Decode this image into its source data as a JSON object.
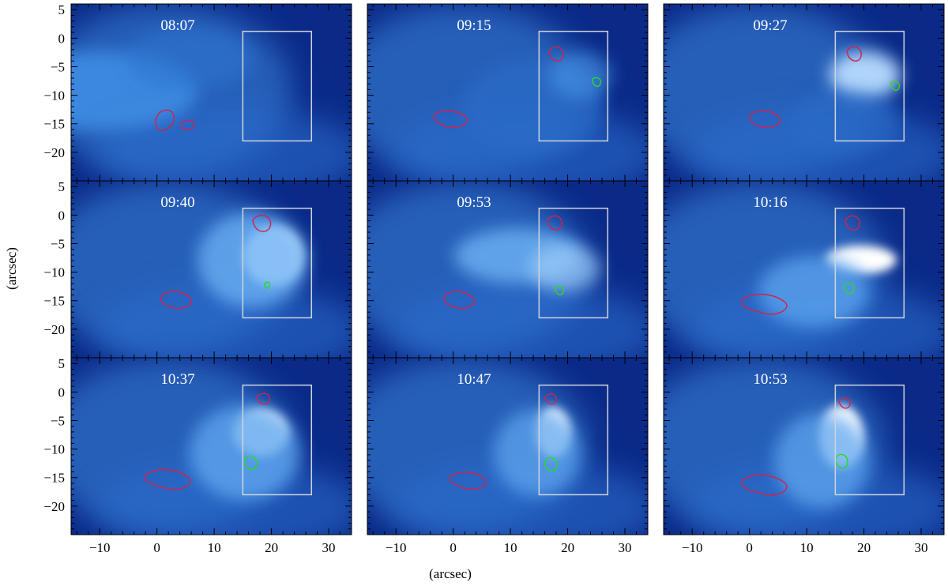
{
  "figure": {
    "xlabel": "(arcsec)",
    "ylabel": "(arcsec)",
    "xlim": [
      -15,
      34
    ],
    "ylim": [
      -25,
      6
    ],
    "xticks": [
      -10,
      0,
      10,
      20,
      30
    ],
    "yticks": [
      5,
      0,
      -5,
      -10,
      -15,
      -20
    ],
    "box": {
      "x": [
        15,
        27
      ],
      "y": [
        -18,
        1.2
      ]
    },
    "colors": {
      "background_dark": "#0b2a88",
      "background_light": "#3d8be0",
      "bright": "#ffffff",
      "contour_red": "#d6204a",
      "contour_green": "#22dd22",
      "box": "#cfd4dc"
    },
    "panels": [
      {
        "time": "08:07"
      },
      {
        "time": "09:15"
      },
      {
        "time": "09:27"
      },
      {
        "time": "09:40"
      },
      {
        "time": "09:53"
      },
      {
        "time": "10:16"
      },
      {
        "time": "10:37"
      },
      {
        "time": "10:47"
      },
      {
        "time": "10:53"
      }
    ]
  }
}
